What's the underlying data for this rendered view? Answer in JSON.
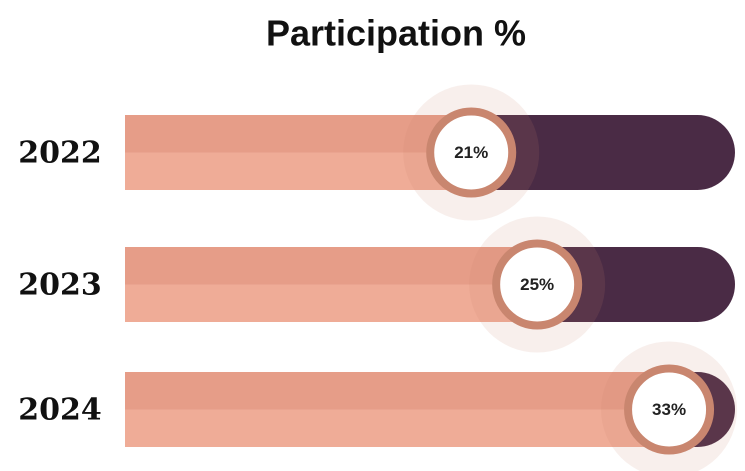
{
  "chart_data": {
    "type": "progress-bar",
    "title": "Participation %",
    "categories": [
      "2022",
      "2023",
      "2024"
    ],
    "values": [
      21,
      25,
      33
    ],
    "value_labels": [
      "21%",
      "25%",
      "33%"
    ],
    "xlim": [
      0,
      37
    ],
    "colors": {
      "fill": "#e69d88",
      "fill_light": "#efac97",
      "track": "#4a2b45",
      "ring": "#c9866f"
    }
  }
}
